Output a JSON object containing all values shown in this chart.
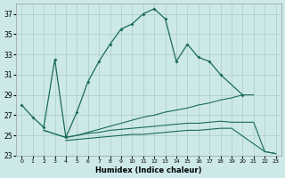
{
  "background_color": "#cce8e8",
  "grid_color": "#aacccc",
  "line_color": "#1a6b5a",
  "xlabel": "Humidex (Indice chaleur)",
  "xlim": [
    -0.5,
    23.5
  ],
  "ylim": [
    23,
    38
  ],
  "yticks": [
    23,
    25,
    27,
    29,
    31,
    33,
    35,
    37
  ],
  "xticks": [
    0,
    1,
    2,
    3,
    4,
    5,
    6,
    7,
    8,
    9,
    10,
    11,
    12,
    13,
    14,
    15,
    16,
    17,
    18,
    19,
    20,
    21,
    22,
    23
  ],
  "main_x": [
    0,
    1,
    2,
    3,
    4,
    5,
    6,
    7,
    8,
    9,
    10,
    11,
    12,
    13,
    14,
    15,
    16,
    17,
    18,
    20
  ],
  "main_y": [
    28.0,
    26.8,
    25.8,
    32.5,
    24.8,
    27.3,
    30.3,
    32.3,
    34.0,
    35.5,
    36.0,
    37.0,
    37.5,
    36.5,
    32.3,
    34.0,
    32.7,
    32.3,
    31.0,
    29.0
  ],
  "line2_x": [
    2,
    4,
    5,
    6,
    7,
    8,
    9,
    10,
    11,
    12,
    13,
    14,
    15,
    16,
    17,
    18,
    19,
    20,
    21
  ],
  "line2_y": [
    25.5,
    24.8,
    25.0,
    25.3,
    25.6,
    25.9,
    26.2,
    26.5,
    26.8,
    27.0,
    27.3,
    27.5,
    27.7,
    28.0,
    28.2,
    28.5,
    28.7,
    29.0,
    29.0
  ],
  "line3_x": [
    2,
    4,
    5,
    6,
    7,
    8,
    9,
    10,
    11,
    12,
    13,
    14,
    15,
    16,
    17,
    18,
    19,
    20,
    21,
    22,
    23
  ],
  "line3_y": [
    25.5,
    24.8,
    25.0,
    25.2,
    25.3,
    25.5,
    25.6,
    25.7,
    25.8,
    25.9,
    26.0,
    26.1,
    26.2,
    26.2,
    26.3,
    26.4,
    26.3,
    26.3,
    26.3,
    23.4,
    23.2
  ],
  "line4_x": [
    4,
    5,
    6,
    7,
    8,
    9,
    10,
    11,
    12,
    13,
    14,
    15,
    16,
    17,
    18,
    19,
    22,
    23
  ],
  "line4_y": [
    24.5,
    24.6,
    24.7,
    24.8,
    24.9,
    25.0,
    25.1,
    25.1,
    25.2,
    25.3,
    25.4,
    25.5,
    25.5,
    25.6,
    25.7,
    25.7,
    23.4,
    23.2
  ]
}
